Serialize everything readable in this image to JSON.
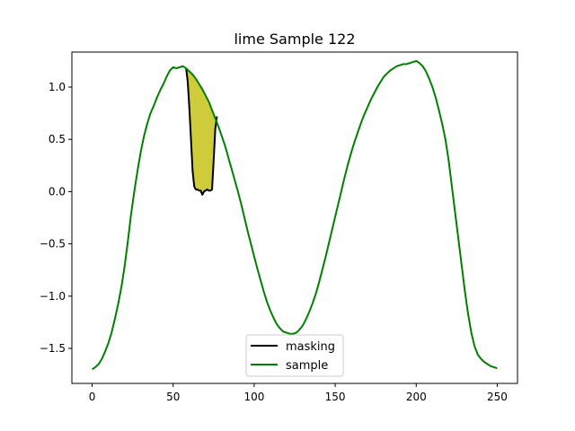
{
  "chart_data": {
    "type": "line",
    "title": "lime Sample 122",
    "xlabel": "",
    "ylabel": "",
    "xlim": [
      -12.5,
      262.5
    ],
    "ylim": [
      -1.835,
      1.335
    ],
    "x_ticks": [
      0,
      50,
      100,
      150,
      200,
      250
    ],
    "y_ticks": [
      -1.5,
      -1.0,
      -0.5,
      0.0,
      0.5,
      1.0
    ],
    "x_tick_labels": [
      "0",
      "50",
      "100",
      "150",
      "200",
      "250"
    ],
    "y_tick_labels": [
      "−1.5",
      "−1.0",
      "−0.5",
      "0.0",
      "0.5",
      "1.0"
    ],
    "grid": false,
    "legend": {
      "position": "lower center",
      "entries": [
        "masking",
        "sample"
      ]
    },
    "mask_region": {
      "x_start": 58,
      "x_end": 77,
      "fill_color": "#cfcc3c"
    },
    "series": [
      {
        "name": "masking",
        "color": "#000000",
        "x": [
          58,
          59,
          60,
          61,
          62,
          63,
          64,
          65,
          66,
          67,
          68,
          69,
          70,
          71,
          72,
          73,
          74,
          75,
          76,
          77
        ],
        "y": [
          1.18,
          1.05,
          0.8,
          0.5,
          0.2,
          0.05,
          0.02,
          0.02,
          0.01,
          0.01,
          -0.03,
          0.0,
          0.01,
          0.02,
          0.01,
          0.01,
          0.02,
          0.3,
          0.6,
          0.72
        ]
      },
      {
        "name": "sample",
        "color": "#008000",
        "x": [
          0,
          2,
          4,
          6,
          8,
          10,
          12,
          14,
          16,
          18,
          20,
          22,
          24,
          26,
          28,
          30,
          32,
          34,
          36,
          38,
          40,
          42,
          44,
          46,
          48,
          50,
          52,
          54,
          56,
          58,
          60,
          62,
          64,
          66,
          68,
          70,
          72,
          74,
          76,
          78,
          80,
          82,
          84,
          86,
          88,
          90,
          92,
          94,
          96,
          98,
          100,
          102,
          104,
          106,
          108,
          110,
          112,
          114,
          116,
          118,
          120,
          122,
          124,
          126,
          128,
          130,
          132,
          134,
          136,
          138,
          140,
          142,
          144,
          146,
          148,
          150,
          152,
          154,
          156,
          158,
          160,
          162,
          164,
          166,
          168,
          170,
          172,
          174,
          176,
          178,
          180,
          182,
          184,
          186,
          188,
          190,
          192,
          194,
          196,
          198,
          200,
          202,
          204,
          206,
          208,
          210,
          212,
          214,
          216,
          218,
          220,
          222,
          224,
          226,
          228,
          230,
          232,
          234,
          236,
          238,
          240,
          242,
          244,
          246,
          248,
          250
        ],
        "y": [
          -1.7,
          -1.68,
          -1.65,
          -1.6,
          -1.53,
          -1.45,
          -1.35,
          -1.22,
          -1.08,
          -0.92,
          -0.72,
          -0.48,
          -0.22,
          0.0,
          0.2,
          0.38,
          0.53,
          0.65,
          0.75,
          0.82,
          0.9,
          0.97,
          1.03,
          1.1,
          1.16,
          1.19,
          1.18,
          1.19,
          1.2,
          1.18,
          1.15,
          1.12,
          1.08,
          1.03,
          0.98,
          0.92,
          0.86,
          0.78,
          0.7,
          0.62,
          0.53,
          0.44,
          0.33,
          0.22,
          0.11,
          0.0,
          -0.12,
          -0.25,
          -0.38,
          -0.5,
          -0.62,
          -0.74,
          -0.85,
          -0.96,
          -1.06,
          -1.14,
          -1.21,
          -1.27,
          -1.31,
          -1.34,
          -1.35,
          -1.36,
          -1.36,
          -1.35,
          -1.32,
          -1.28,
          -1.22,
          -1.15,
          -1.07,
          -0.98,
          -0.87,
          -0.75,
          -0.63,
          -0.5,
          -0.37,
          -0.24,
          -0.11,
          0.02,
          0.15,
          0.27,
          0.38,
          0.48,
          0.57,
          0.66,
          0.74,
          0.81,
          0.88,
          0.94,
          1.0,
          1.05,
          1.1,
          1.13,
          1.16,
          1.18,
          1.2,
          1.21,
          1.22,
          1.22,
          1.23,
          1.24,
          1.25,
          1.23,
          1.2,
          1.15,
          1.08,
          1.0,
          0.9,
          0.78,
          0.65,
          0.5,
          0.3,
          0.05,
          -0.2,
          -0.45,
          -0.7,
          -0.95,
          -1.17,
          -1.35,
          -1.48,
          -1.56,
          -1.6,
          -1.63,
          -1.65,
          -1.67,
          -1.68,
          -1.69
        ]
      }
    ]
  }
}
